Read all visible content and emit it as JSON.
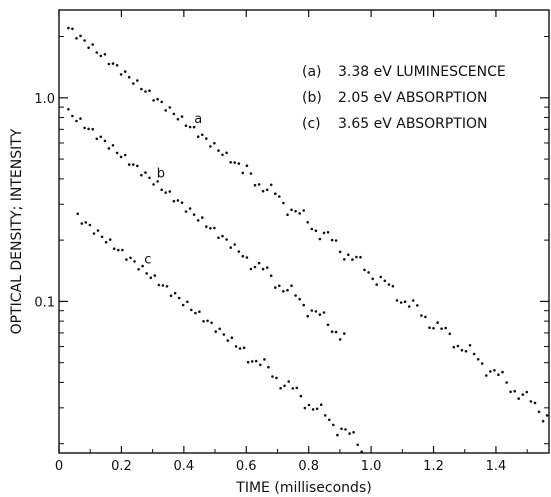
{
  "chart_data": {
    "type": "scatter",
    "xlabel": "TIME (milliseconds)",
    "ylabel": "OPTICAL DENSITY; INTENSITY",
    "x_scale": "linear",
    "y_scale": "log",
    "xlim": [
      0,
      1.57
    ],
    "ylim": [
      0.018,
      2.7
    ],
    "x_ticks": [
      "0",
      "0.2",
      "0.4",
      "0.6",
      "0.8",
      "1.0",
      "1.2",
      "1.4"
    ],
    "x_tick_values": [
      0,
      0.2,
      0.4,
      0.6,
      0.8,
      1.0,
      1.2,
      1.4
    ],
    "y_ticks": [
      "0.1",
      "1.0"
    ],
    "y_tick_values": [
      0.1,
      1.0
    ],
    "grid": false,
    "legend_placement": "top-right",
    "legend": [
      {
        "key": "(a)",
        "text": "3.38 eV LUMINESCENCE"
      },
      {
        "key": "(b)",
        "text": "2.05 eV ABSORPTION"
      },
      {
        "key": "(c)",
        "text": "3.65 eV ABSORPTION"
      }
    ],
    "series": [
      {
        "name": "a",
        "curve_label": "a",
        "label_x": 0.43,
        "start_x": 0.03,
        "start_y": 2.2,
        "end_x": 1.57,
        "end_y": 0.027,
        "x_step": 0.013
      },
      {
        "name": "b",
        "curve_label": "b",
        "label_x": 0.31,
        "start_x": 0.03,
        "start_y": 0.85,
        "end_x": 0.92,
        "end_y": 0.066,
        "x_step": 0.013
      },
      {
        "name": "c",
        "curve_label": "c",
        "label_x": 0.27,
        "start_x": 0.06,
        "start_y": 0.26,
        "end_x": 0.98,
        "end_y": 0.019,
        "x_step": 0.013
      }
    ],
    "color": "#111111"
  }
}
